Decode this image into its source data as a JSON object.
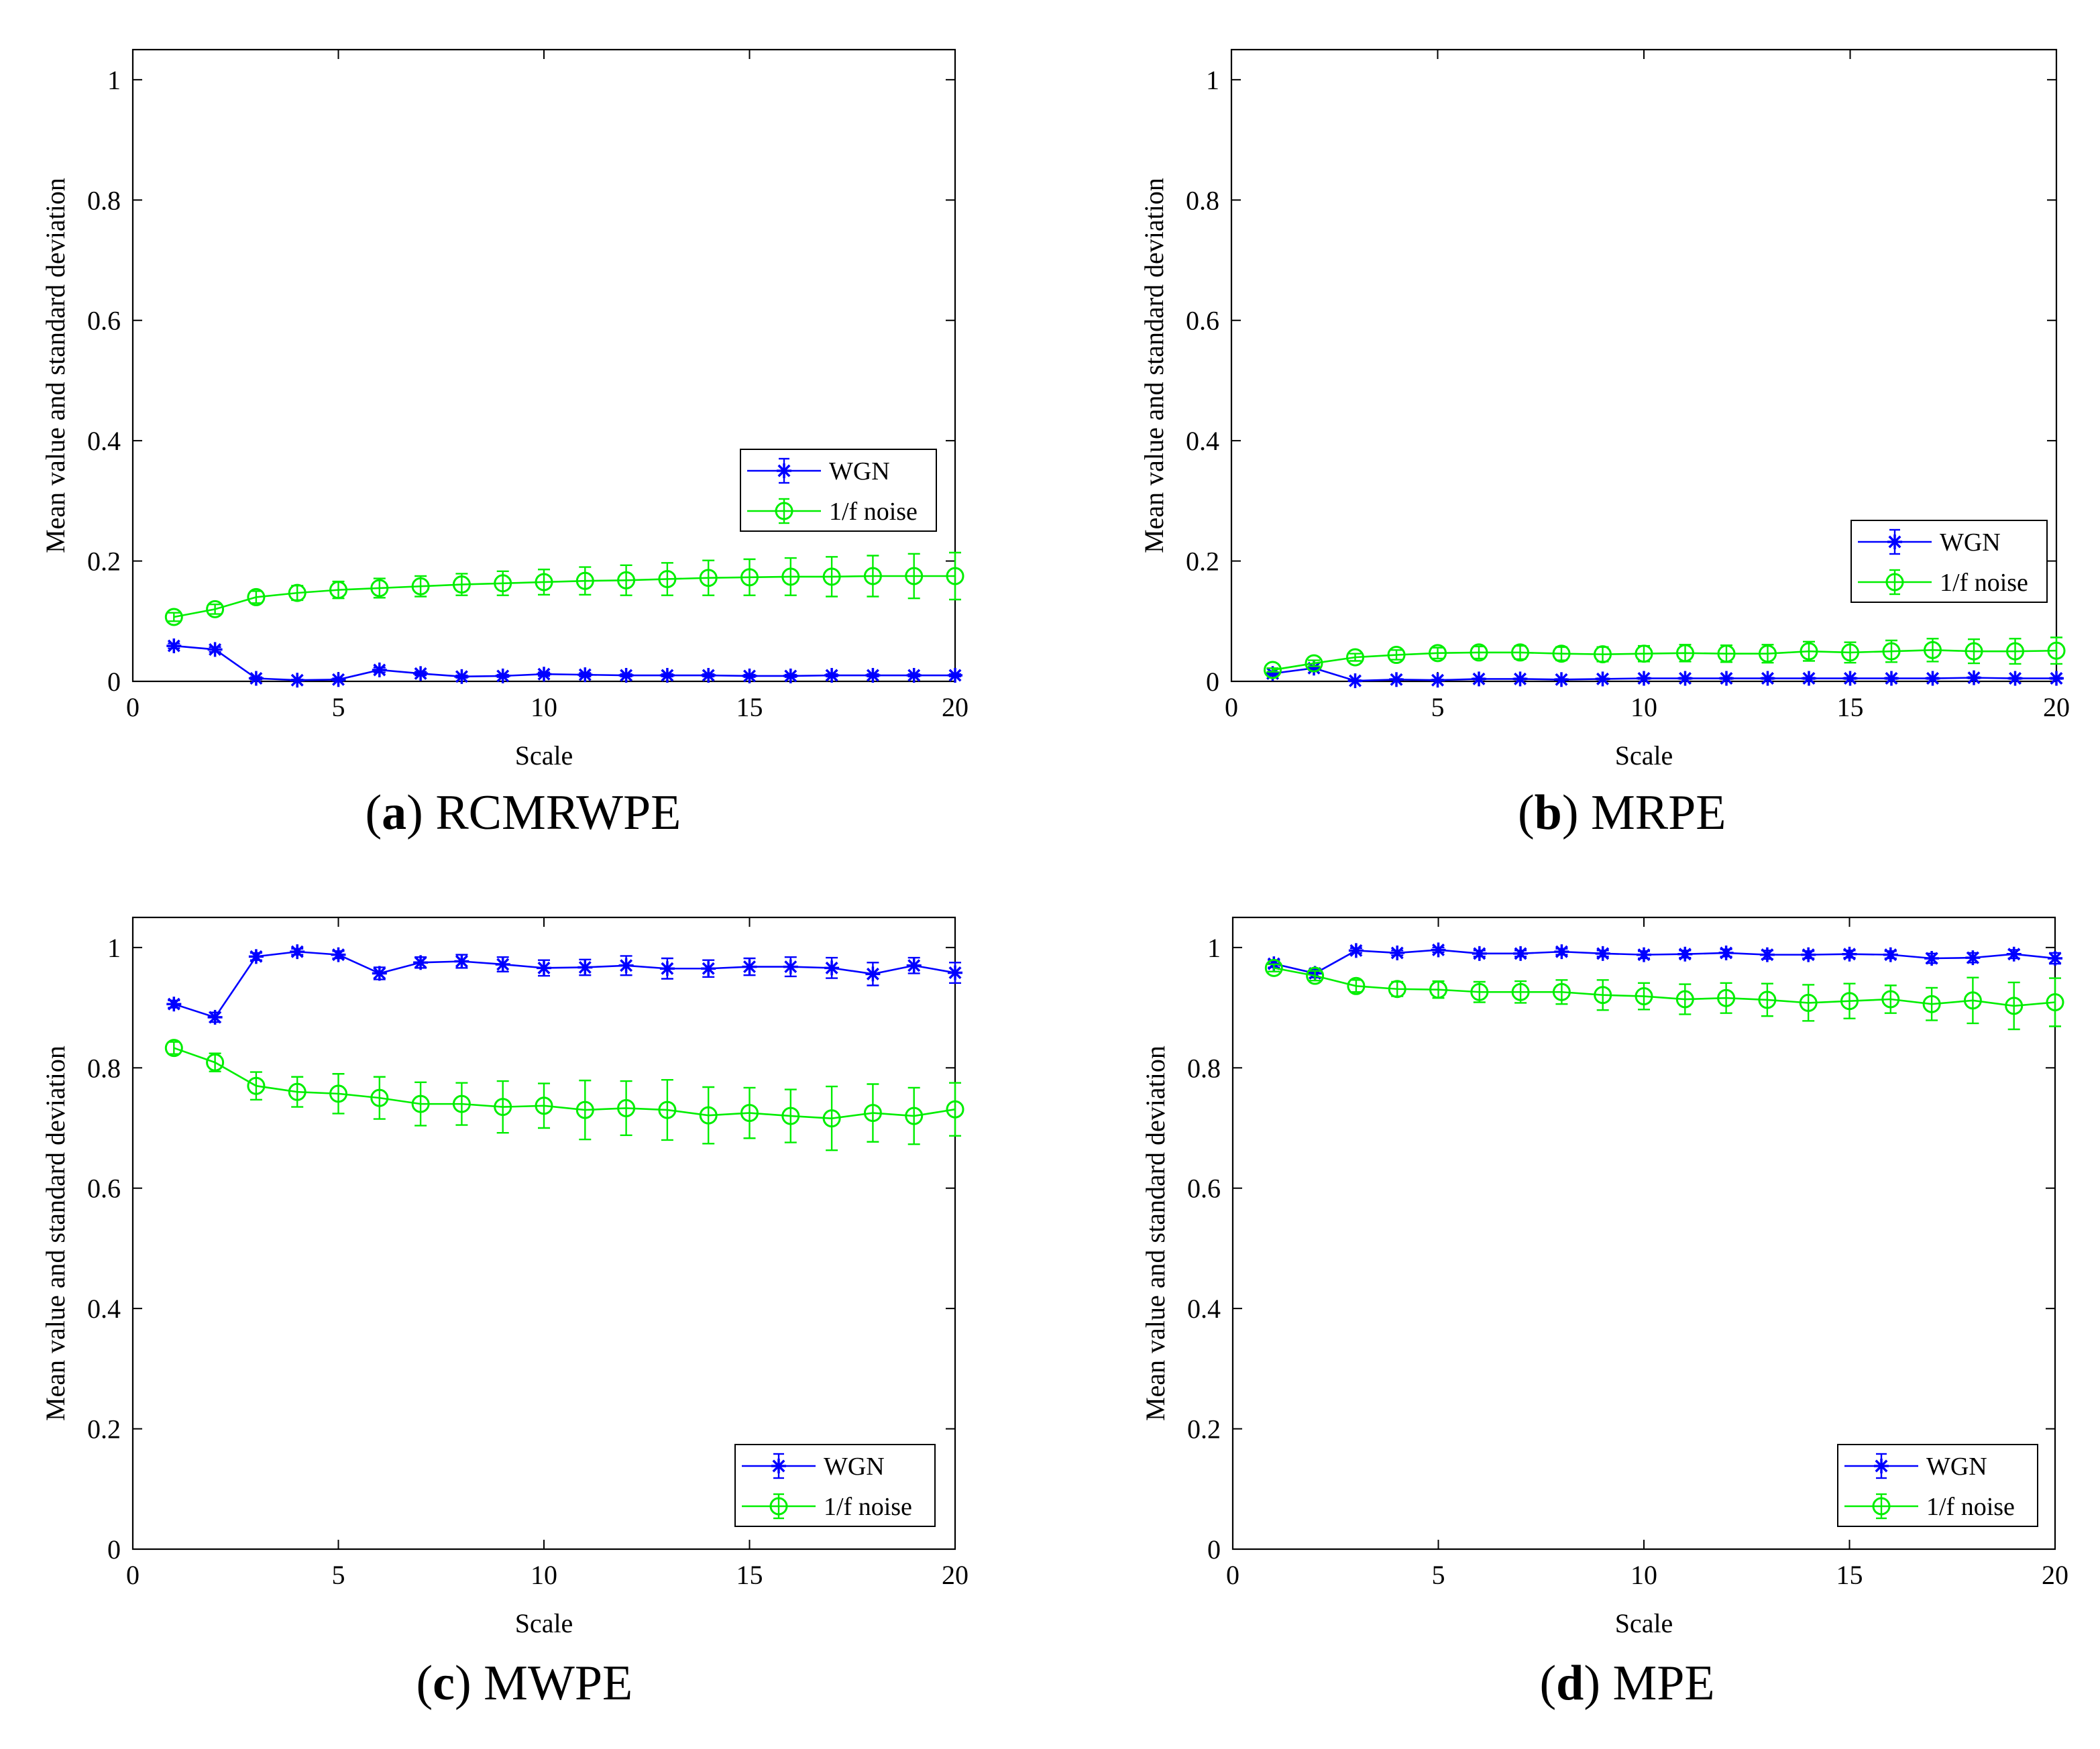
{
  "chart_data": [
    {
      "panel": "a",
      "caption_letter": "a",
      "caption_name": "RCMRWPE",
      "type": "line",
      "xlabel": "Scale",
      "ylabel": "Mean value and standard deviation",
      "xlim": [
        0,
        20
      ],
      "ylim": [
        0,
        1.05
      ],
      "xticks": [
        "0",
        "5",
        "10",
        "15",
        "20"
      ],
      "yticks": [
        "0",
        "0.2",
        "0.4",
        "0.6",
        "0.8",
        "1"
      ],
      "legend_position": "center-right",
      "series": [
        {
          "name": "WGN",
          "color": "#0000ff",
          "marker": "star",
          "x": [
            1,
            2,
            3,
            4,
            5,
            6,
            7,
            8,
            9,
            10,
            11,
            12,
            13,
            14,
            15,
            16,
            17,
            18,
            19,
            20
          ],
          "y": [
            0.059,
            0.053,
            0.005,
            0.002,
            0.003,
            0.019,
            0.013,
            0.008,
            0.009,
            0.012,
            0.011,
            0.01,
            0.01,
            0.01,
            0.009,
            0.009,
            0.01,
            0.01,
            0.01,
            0.01
          ],
          "err": [
            0.004,
            0.004,
            0.002,
            0.001,
            0.002,
            0.004,
            0.003,
            0.002,
            0.002,
            0.003,
            0.003,
            0.002,
            0.002,
            0.002,
            0.002,
            0.002,
            0.002,
            0.002,
            0.002,
            0.002
          ]
        },
        {
          "name": "1/f noise",
          "color": "#00ee00",
          "marker": "circle",
          "x": [
            1,
            2,
            3,
            4,
            5,
            6,
            7,
            8,
            9,
            10,
            11,
            12,
            13,
            14,
            15,
            16,
            17,
            18,
            19,
            20
          ],
          "y": [
            0.107,
            0.12,
            0.14,
            0.147,
            0.152,
            0.155,
            0.158,
            0.161,
            0.163,
            0.165,
            0.167,
            0.168,
            0.17,
            0.172,
            0.173,
            0.174,
            0.174,
            0.175,
            0.175,
            0.175
          ],
          "err": [
            0.007,
            0.008,
            0.01,
            0.012,
            0.014,
            0.016,
            0.017,
            0.018,
            0.02,
            0.021,
            0.023,
            0.025,
            0.027,
            0.029,
            0.03,
            0.031,
            0.033,
            0.034,
            0.037,
            0.039
          ]
        }
      ]
    },
    {
      "panel": "b",
      "caption_letter": "b",
      "caption_name": "MRPE",
      "type": "line",
      "xlabel": "Scale",
      "ylabel": "Mean value and standard deviation",
      "xlim": [
        0,
        20
      ],
      "ylim": [
        0,
        1.05
      ],
      "xticks": [
        "0",
        "5",
        "10",
        "15",
        "20"
      ],
      "yticks": [
        "0",
        "0.2",
        "0.4",
        "0.6",
        "0.8",
        "1"
      ],
      "legend_position": "lower-right",
      "series": [
        {
          "name": "WGN",
          "color": "#0000ff",
          "marker": "star",
          "x": [
            1,
            2,
            3,
            4,
            5,
            6,
            7,
            8,
            9,
            10,
            11,
            12,
            13,
            14,
            15,
            16,
            17,
            18,
            19,
            20
          ],
          "y": [
            0.013,
            0.022,
            0.001,
            0.003,
            0.002,
            0.004,
            0.004,
            0.003,
            0.004,
            0.005,
            0.005,
            0.005,
            0.005,
            0.005,
            0.005,
            0.005,
            0.005,
            0.006,
            0.005,
            0.005
          ],
          "err": [
            0.002,
            0.003,
            0.001,
            0.001,
            0.001,
            0.001,
            0.001,
            0.001,
            0.001,
            0.001,
            0.001,
            0.001,
            0.001,
            0.001,
            0.001,
            0.001,
            0.001,
            0.001,
            0.001,
            0.001
          ]
        },
        {
          "name": "1/f noise",
          "color": "#00ee00",
          "marker": "circle",
          "x": [
            1,
            2,
            3,
            4,
            5,
            6,
            7,
            8,
            9,
            10,
            11,
            12,
            13,
            14,
            15,
            16,
            17,
            18,
            19,
            20
          ],
          "y": [
            0.019,
            0.03,
            0.04,
            0.044,
            0.047,
            0.048,
            0.048,
            0.046,
            0.045,
            0.046,
            0.047,
            0.046,
            0.046,
            0.05,
            0.048,
            0.05,
            0.052,
            0.05,
            0.05,
            0.051
          ],
          "err": [
            0.003,
            0.005,
            0.006,
            0.008,
            0.009,
            0.01,
            0.011,
            0.011,
            0.012,
            0.013,
            0.014,
            0.014,
            0.015,
            0.016,
            0.017,
            0.018,
            0.019,
            0.02,
            0.021,
            0.022
          ]
        }
      ]
    },
    {
      "panel": "c",
      "caption_letter": "c",
      "caption_name": "MWPE",
      "type": "line",
      "xlabel": "Scale",
      "ylabel": "Mean value and standard deviation",
      "xlim": [
        0,
        20
      ],
      "ylim": [
        0,
        1.05
      ],
      "xticks": [
        "0",
        "5",
        "10",
        "15",
        "20"
      ],
      "yticks": [
        "0",
        "0.2",
        "0.4",
        "0.6",
        "0.8",
        "1"
      ],
      "legend_position": "lower-right",
      "series": [
        {
          "name": "WGN",
          "color": "#0000ff",
          "marker": "star",
          "x": [
            1,
            2,
            3,
            4,
            5,
            6,
            7,
            8,
            9,
            10,
            11,
            12,
            13,
            14,
            15,
            16,
            17,
            18,
            19,
            20
          ],
          "y": [
            0.906,
            0.884,
            0.985,
            0.993,
            0.988,
            0.957,
            0.975,
            0.977,
            0.972,
            0.966,
            0.967,
            0.97,
            0.965,
            0.965,
            0.968,
            0.968,
            0.966,
            0.956,
            0.97,
            0.958
          ],
          "err": [
            0.006,
            0.008,
            0.006,
            0.005,
            0.006,
            0.01,
            0.009,
            0.011,
            0.012,
            0.013,
            0.013,
            0.016,
            0.017,
            0.014,
            0.014,
            0.016,
            0.017,
            0.019,
            0.013,
            0.017
          ]
        },
        {
          "name": "1/f noise",
          "color": "#00ee00",
          "marker": "circle",
          "x": [
            1,
            2,
            3,
            4,
            5,
            6,
            7,
            8,
            9,
            10,
            11,
            12,
            13,
            14,
            15,
            16,
            17,
            18,
            19,
            20
          ],
          "y": [
            0.833,
            0.809,
            0.77,
            0.76,
            0.757,
            0.75,
            0.74,
            0.74,
            0.735,
            0.737,
            0.73,
            0.733,
            0.73,
            0.721,
            0.725,
            0.72,
            0.716,
            0.725,
            0.72,
            0.731
          ],
          "err": [
            0.01,
            0.015,
            0.023,
            0.025,
            0.033,
            0.035,
            0.036,
            0.035,
            0.043,
            0.037,
            0.049,
            0.045,
            0.05,
            0.047,
            0.042,
            0.044,
            0.053,
            0.048,
            0.047,
            0.044
          ]
        }
      ]
    },
    {
      "panel": "d",
      "caption_letter": "d",
      "caption_name": "MPE",
      "type": "line",
      "xlabel": "Scale",
      "ylabel": "Mean value and standard deviation",
      "xlim": [
        0,
        20
      ],
      "ylim": [
        0,
        1.05
      ],
      "xticks": [
        "0",
        "5",
        "10",
        "15",
        "20"
      ],
      "yticks": [
        "0",
        "0.2",
        "0.4",
        "0.6",
        "0.8",
        "1"
      ],
      "legend_position": "lower-right",
      "series": [
        {
          "name": "WGN",
          "color": "#0000ff",
          "marker": "star",
          "x": [
            1,
            2,
            3,
            4,
            5,
            6,
            7,
            8,
            9,
            10,
            11,
            12,
            13,
            14,
            15,
            16,
            17,
            18,
            19,
            20
          ],
          "y": [
            0.973,
            0.957,
            0.995,
            0.991,
            0.996,
            0.99,
            0.99,
            0.993,
            0.99,
            0.988,
            0.989,
            0.991,
            0.988,
            0.988,
            0.989,
            0.988,
            0.982,
            0.983,
            0.989,
            0.982
          ],
          "err": [
            0.006,
            0.007,
            0.004,
            0.004,
            0.004,
            0.005,
            0.005,
            0.005,
            0.005,
            0.006,
            0.006,
            0.006,
            0.007,
            0.006,
            0.006,
            0.006,
            0.008,
            0.008,
            0.007,
            0.009
          ]
        },
        {
          "name": "1/f noise",
          "color": "#00ee00",
          "marker": "circle",
          "x": [
            1,
            2,
            3,
            4,
            5,
            6,
            7,
            8,
            9,
            10,
            11,
            12,
            13,
            14,
            15,
            16,
            17,
            18,
            19,
            20
          ],
          "y": [
            0.966,
            0.953,
            0.936,
            0.931,
            0.93,
            0.926,
            0.926,
            0.926,
            0.921,
            0.919,
            0.914,
            0.916,
            0.913,
            0.908,
            0.911,
            0.914,
            0.906,
            0.912,
            0.903,
            0.909
          ],
          "err": [
            0.006,
            0.008,
            0.01,
            0.012,
            0.014,
            0.017,
            0.018,
            0.02,
            0.025,
            0.022,
            0.025,
            0.025,
            0.027,
            0.03,
            0.029,
            0.023,
            0.027,
            0.038,
            0.039,
            0.04
          ]
        }
      ]
    }
  ]
}
